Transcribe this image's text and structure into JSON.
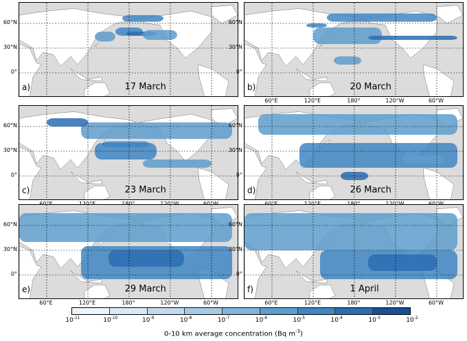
{
  "chart_data": {
    "type": "heatmap",
    "panels": [
      {
        "label": "a)",
        "date": "17 March",
        "plume": [
          [
            130,
            50,
            160,
            38
          ],
          [
            160,
            55,
            200,
            45
          ],
          [
            175,
            45,
            220,
            50
          ],
          [
            200,
            52,
            250,
            40
          ],
          [
            170,
            70,
            230,
            62
          ]
        ],
        "show_x": false
      },
      {
        "label": "b)",
        "date": "20 March",
        "plume": [
          [
            120,
            35,
            220,
            55
          ],
          [
            140,
            62,
            300,
            72
          ],
          [
            200,
            40,
            330,
            45
          ],
          [
            150,
            20,
            190,
            10
          ],
          [
            110,
            55,
            140,
            60
          ]
        ],
        "show_x": true
      },
      {
        "label": "c)",
        "date": "23 March",
        "plume": [
          [
            110,
            45,
            330,
            65
          ],
          [
            130,
            20,
            220,
            40
          ],
          [
            60,
            60,
            120,
            70
          ],
          [
            200,
            10,
            300,
            20
          ],
          [
            140,
            35,
            210,
            42
          ]
        ],
        "show_x": true
      },
      {
        "label": "d)",
        "date": "26 March",
        "plume": [
          [
            40,
            50,
            330,
            75
          ],
          [
            100,
            10,
            330,
            40
          ],
          [
            160,
            -5,
            200,
            5
          ],
          [
            250,
            15,
            310,
            25
          ]
        ],
        "show_x": true
      },
      {
        "label": "e)",
        "date": "29 March",
        "plume": [
          [
            20,
            40,
            330,
            75
          ],
          [
            110,
            -5,
            330,
            35
          ],
          [
            150,
            10,
            260,
            30
          ]
        ],
        "show_x": true
      },
      {
        "label": "f)",
        "date": "1 April",
        "plume": [
          [
            20,
            30,
            330,
            75
          ],
          [
            130,
            -5,
            330,
            30
          ],
          [
            200,
            5,
            300,
            25
          ]
        ],
        "show_x": true
      }
    ],
    "x_ticks": [
      "60°E",
      "120°E",
      "180°",
      "120°W",
      "60°W"
    ],
    "y_ticks": [
      "60°N",
      "30°N",
      "0°"
    ],
    "colorbar": {
      "ticks": [
        {
          "base": "10",
          "exp": "-11"
        },
        {
          "base": "10",
          "exp": "-10"
        },
        {
          "base": "10",
          "exp": "-9"
        },
        {
          "base": "10",
          "exp": "-8"
        },
        {
          "base": "10",
          "exp": "-7"
        },
        {
          "base": "10",
          "exp": "-6"
        },
        {
          "base": "10",
          "exp": "-5"
        },
        {
          "base": "10",
          "exp": "-4"
        },
        {
          "base": "10",
          "exp": "-3"
        },
        {
          "base": "10",
          "exp": "-2"
        }
      ],
      "colors": [
        "#eef4fb",
        "#d9e8f5",
        "#c3daee",
        "#a6c9e4",
        "#84b4d9",
        "#5e9dcd",
        "#3f86c2",
        "#2a6db1",
        "#1b4f96"
      ],
      "title_prefix": "0-10 km average concentration (Bq m",
      "title_exp": "-3",
      "title_suffix": ")"
    }
  }
}
